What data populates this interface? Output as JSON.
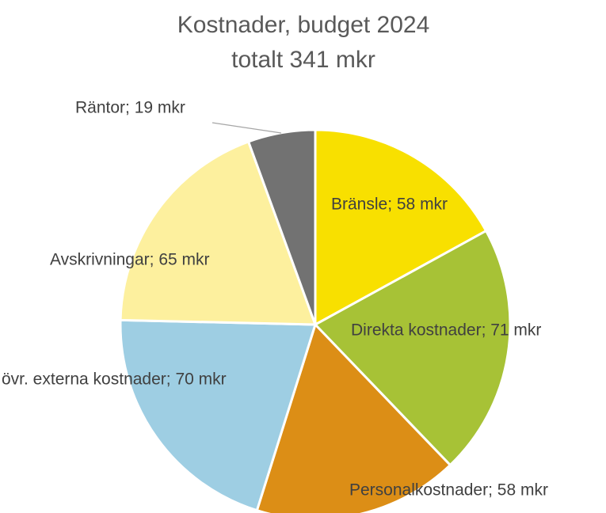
{
  "chart_data": {
    "type": "pie",
    "title": "Kostnader, budget 2024",
    "subtitle": "totalt 341 mkr",
    "categories": [
      "Bränsle",
      "Direkta kostnader",
      "Personalkostnader",
      "övr. externa kostnader",
      "Avskrivningar",
      "Räntor"
    ],
    "values": [
      58,
      71,
      58,
      70,
      65,
      19
    ],
    "value_labels": [
      "Bränsle; 58 mkr",
      "Direkta kostnader; 71 mkr",
      "Personalkostnader; 58 mkr",
      "övr. externa kostnader; 70 mkr",
      "Avskrivningar; 65 mkr",
      "Räntor; 19 mkr"
    ],
    "colors": [
      "#f8e000",
      "#a7c236",
      "#dc8e16",
      "#9ecee3",
      "#fdf09e",
      "#727272"
    ]
  }
}
